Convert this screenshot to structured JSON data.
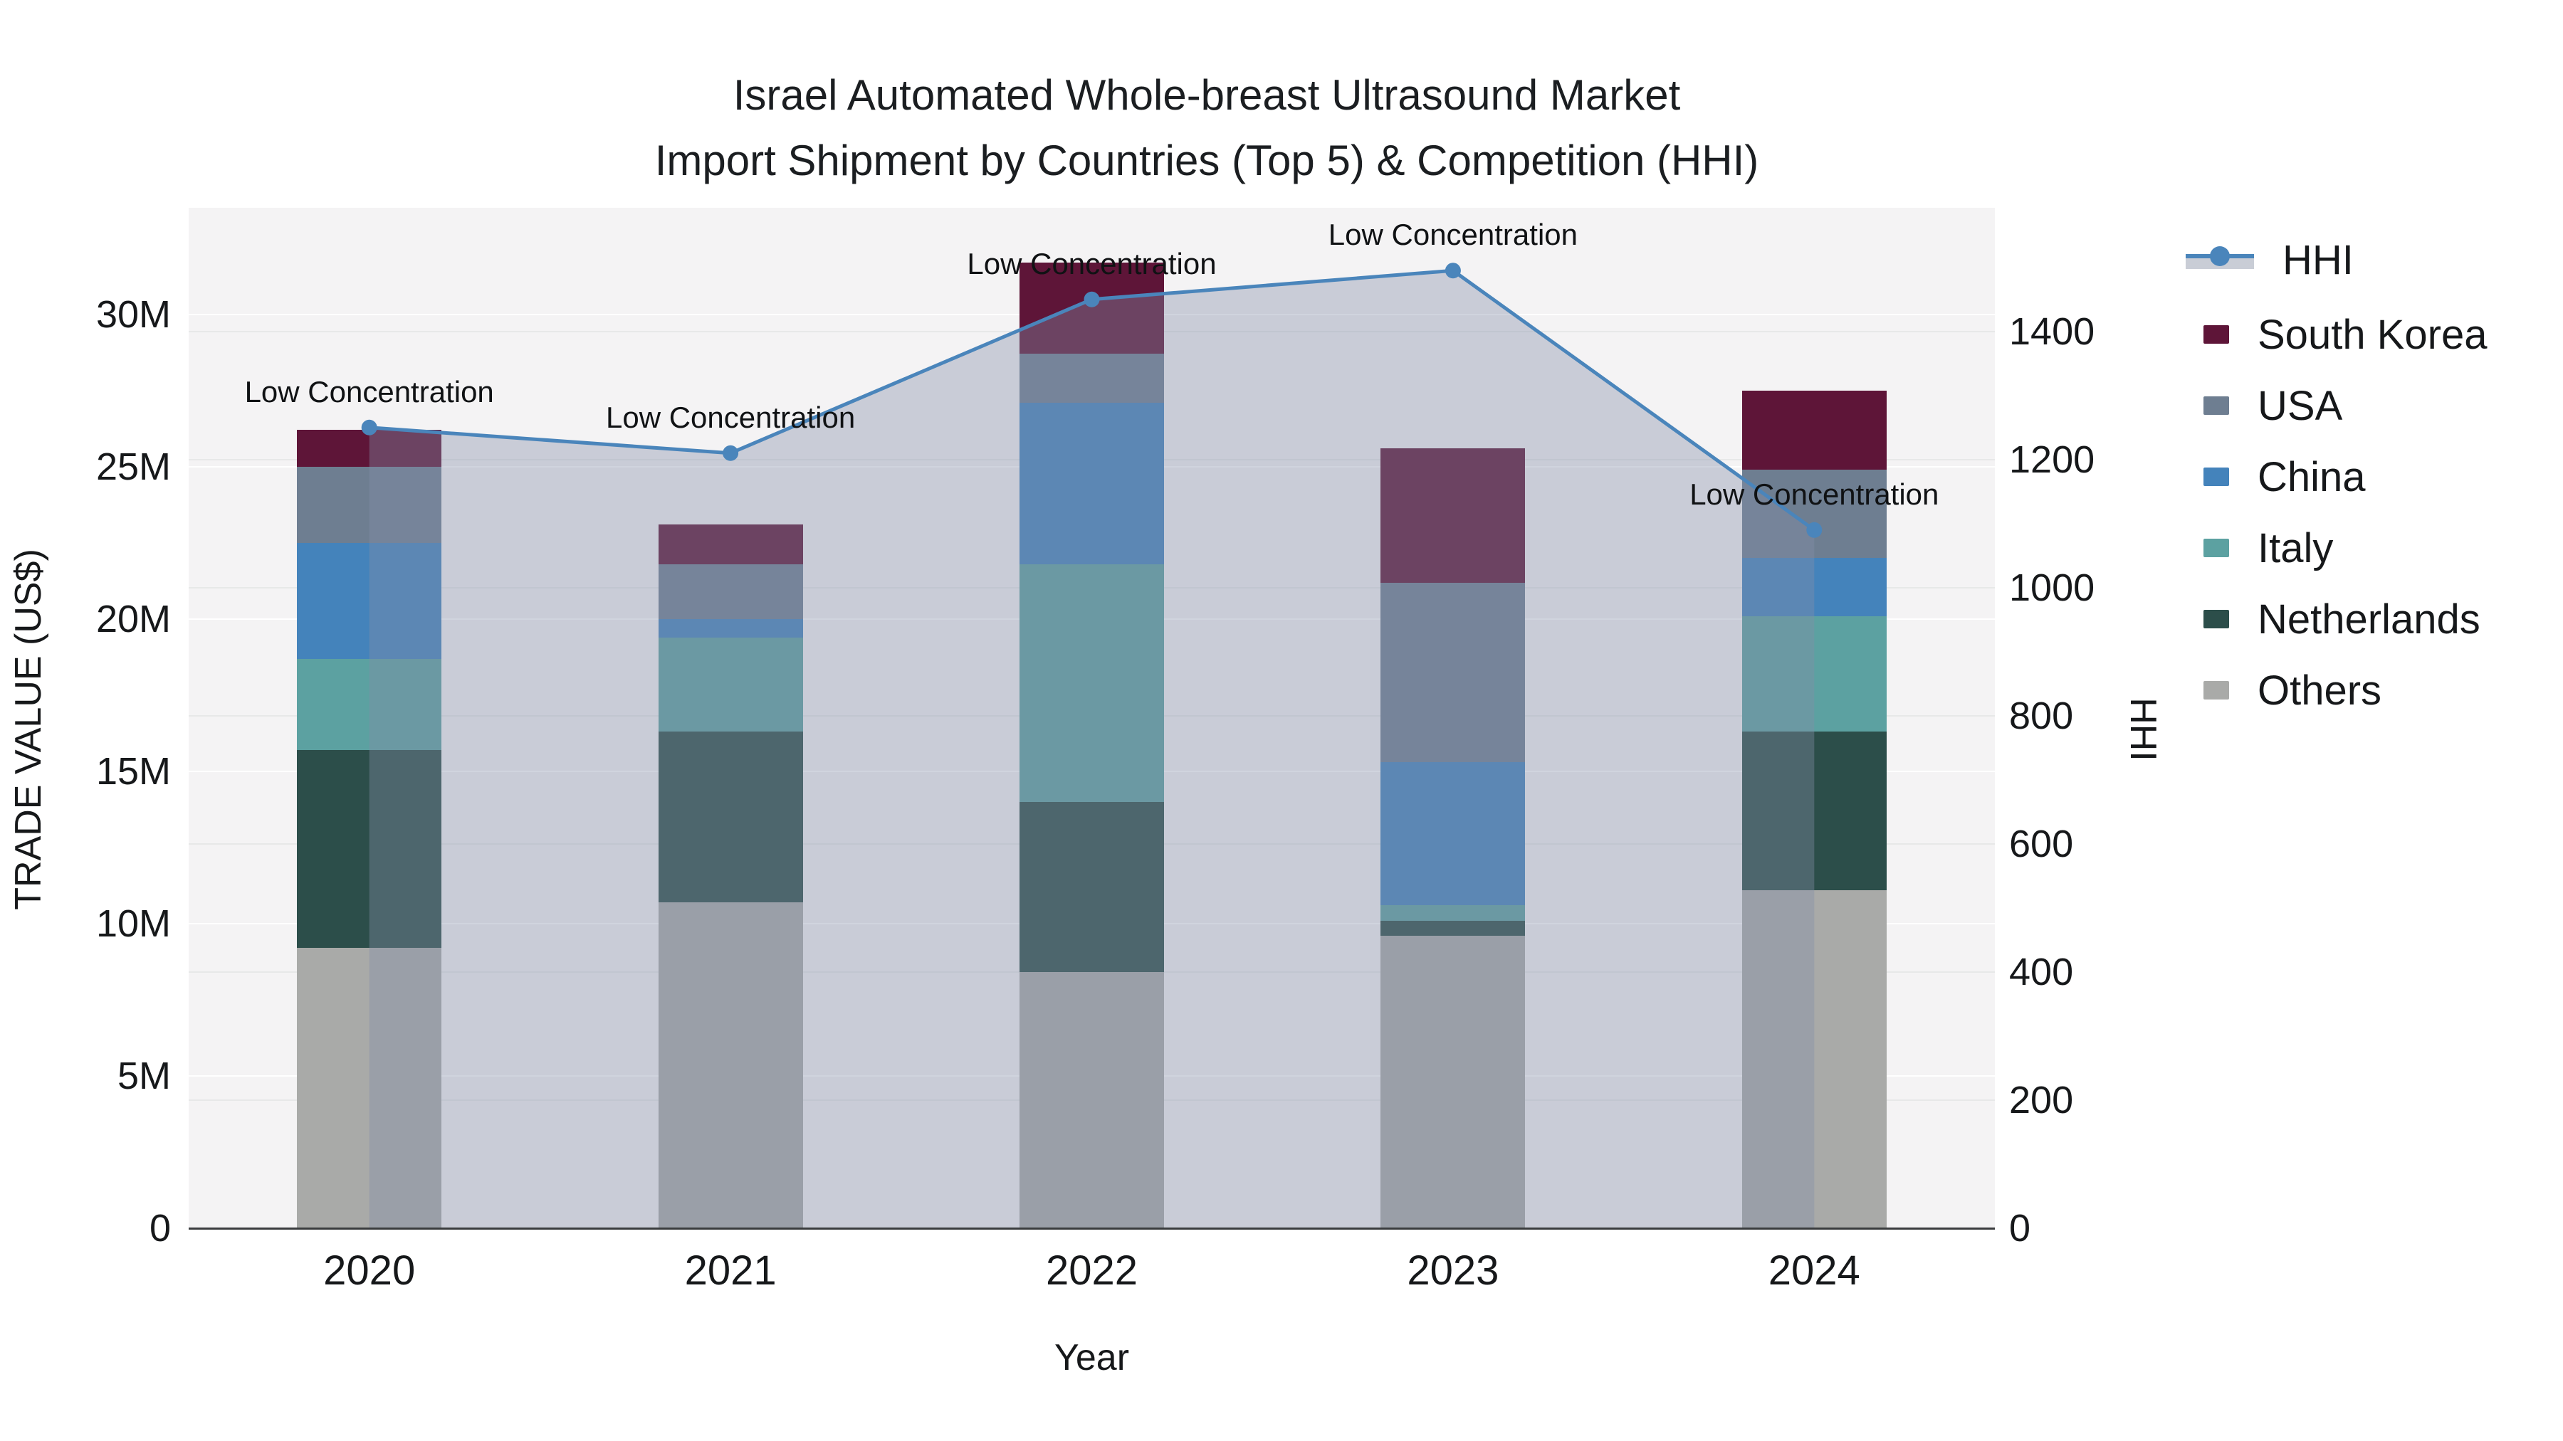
{
  "title": {
    "line1": "Israel Automated Whole-breast Ultrasound Market",
    "line2": "Import Shipment by Countries (Top 5) & Competition (HHI)"
  },
  "colors": {
    "plot_bg": "#f4f3f4",
    "grid_major": "#ffffff",
    "grid_minor": "#e7e8e8",
    "axis_line": "#3a3c3e",
    "text": "#16181a",
    "hhi_line": "#4a85bb",
    "hhi_fill": "rgba(131,143,167,0.38)"
  },
  "chart_data": {
    "type": [
      "bar",
      "line"
    ],
    "title": "Israel Automated Whole-breast Ultrasound Market — Import Shipment by Countries (Top 5) & Competition (HHI)",
    "categories": [
      "2020",
      "2021",
      "2022",
      "2023",
      "2024"
    ],
    "xlabel": "Year",
    "ylabel_left": "TRADE VALUE (US$)",
    "ylabel_right": "HHI",
    "ylim_left_usd_m": [
      0,
      33.5
    ],
    "ylim_right_hhi": [
      0,
      1593
    ],
    "yticks_left": [
      "0",
      "5M",
      "10M",
      "15M",
      "20M",
      "25M",
      "30M"
    ],
    "yticks_left_values_m": [
      0,
      5,
      10,
      15,
      20,
      25,
      30
    ],
    "yticks_right": [
      "0",
      "200",
      "400",
      "600",
      "800",
      "1000",
      "1200",
      "1400"
    ],
    "yticks_right_values": [
      0,
      200,
      400,
      600,
      800,
      1000,
      1200,
      1400
    ],
    "grid": "on",
    "legend_position": "right",
    "bar_width_fraction": 0.4,
    "stack_order_bottom_to_top": [
      "Others",
      "Netherlands",
      "Italy",
      "China",
      "USA",
      "South Korea"
    ],
    "series": [
      {
        "name": "South Korea",
        "type": "bar",
        "color": "#5e1538",
        "values_usd_m": [
          1.2,
          1.3,
          3.0,
          4.4,
          2.6
        ]
      },
      {
        "name": "USA",
        "type": "bar",
        "color": "#6e7e91",
        "values_usd_m": [
          2.5,
          1.8,
          1.6,
          5.9,
          2.9
        ]
      },
      {
        "name": "China",
        "type": "bar",
        "color": "#4483bb",
        "values_usd_m": [
          3.8,
          0.6,
          5.3,
          4.7,
          1.9
        ]
      },
      {
        "name": "Italy",
        "type": "bar",
        "color": "#5ca1a1",
        "values_usd_m": [
          3.0,
          3.1,
          7.8,
          0.5,
          3.8
        ]
      },
      {
        "name": "Netherlands",
        "type": "bar",
        "color": "#2c4e4a",
        "values_usd_m": [
          6.5,
          5.6,
          5.6,
          0.5,
          5.2
        ]
      },
      {
        "name": "Others",
        "type": "bar",
        "color": "#a9aaa8",
        "values_usd_m": [
          9.2,
          10.7,
          8.4,
          9.6,
          11.1
        ]
      }
    ],
    "totals_usd_m": [
      26.2,
      23.1,
      31.7,
      25.6,
      27.5
    ],
    "line_series": {
      "name": "HHI",
      "color": "#4a85bb",
      "marker": "circle",
      "fill": "tozeroy between first and last category",
      "fill_color": "rgba(131,143,167,0.38)",
      "values": [
        1250,
        1210,
        1450,
        1495,
        1090
      ]
    },
    "annotations": [
      {
        "text": "Low Concentration",
        "category": "2020",
        "hhi": 1250
      },
      {
        "text": "Low Concentration",
        "category": "2021",
        "hhi": 1210
      },
      {
        "text": "Low Concentration",
        "category": "2022",
        "hhi": 1450
      },
      {
        "text": "Low Concentration",
        "category": "2023",
        "hhi": 1495
      },
      {
        "text": "Low Concentration",
        "category": "2024",
        "hhi": 1090
      }
    ]
  },
  "legend": {
    "items": [
      "HHI",
      "South Korea",
      "USA",
      "China",
      "Italy",
      "Netherlands",
      "Others"
    ]
  }
}
